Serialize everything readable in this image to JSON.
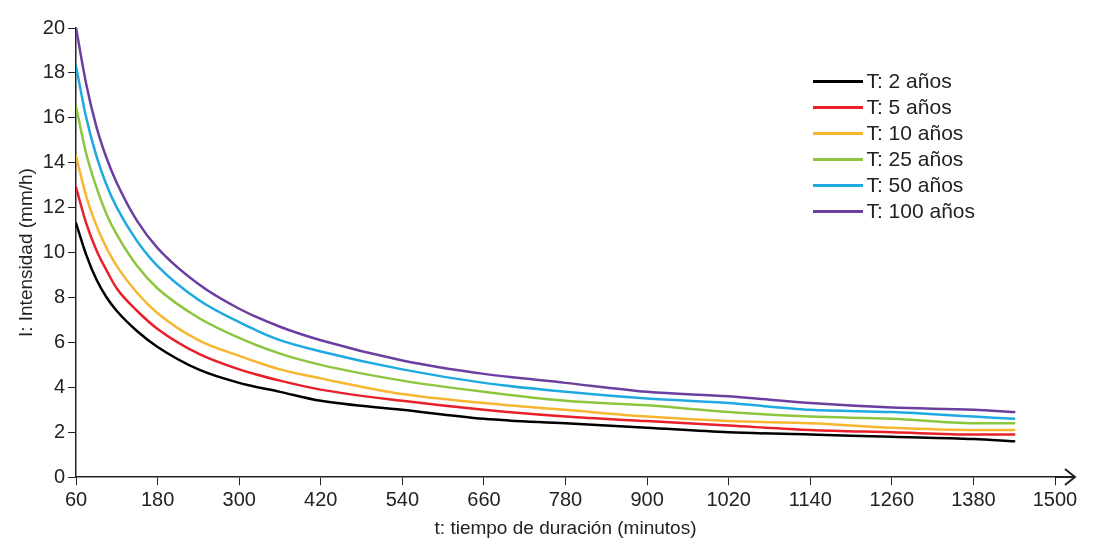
{
  "chart_data": {
    "type": "line",
    "xlabel": "t: tiempo de duración (minutos)",
    "ylabel": "I: Intensidad (mm/h)",
    "x": [
      60,
      75,
      90,
      105,
      120,
      150,
      180,
      240,
      300,
      360,
      420,
      540,
      660,
      780,
      900,
      1020,
      1140,
      1260,
      1380,
      1440
    ],
    "series": [
      {
        "name": "T: 2 años",
        "color": "#000000",
        "values": [
          11.3,
          9.9,
          8.8,
          8.0,
          7.4,
          6.5,
          5.8,
          4.8,
          4.2,
          3.8,
          3.4,
          3.0,
          2.6,
          2.4,
          2.2,
          2.0,
          1.9,
          1.8,
          1.7,
          1.6
        ]
      },
      {
        "name": "T: 5 años",
        "color": "#e8202a",
        "values": [
          12.9,
          11.3,
          10.1,
          9.2,
          8.4,
          7.4,
          6.6,
          5.5,
          4.8,
          4.3,
          3.9,
          3.4,
          3.0,
          2.7,
          2.5,
          2.3,
          2.1,
          2.0,
          1.9,
          1.9
        ]
      },
      {
        "name": "T: 10 años",
        "color": "#f7b62f",
        "values": [
          14.3,
          12.5,
          11.2,
          10.2,
          9.4,
          8.2,
          7.3,
          6.1,
          5.4,
          4.8,
          4.4,
          3.7,
          3.3,
          3.0,
          2.7,
          2.5,
          2.4,
          2.2,
          2.1,
          2.1
        ]
      },
      {
        "name": "T: 25 años",
        "color": "#8cc63f",
        "values": [
          16.5,
          14.4,
          12.9,
          11.7,
          10.8,
          9.4,
          8.4,
          7.1,
          6.2,
          5.5,
          5.0,
          4.3,
          3.8,
          3.4,
          3.2,
          2.9,
          2.7,
          2.6,
          2.4,
          2.4
        ]
      },
      {
        "name": "T: 50 años",
        "color": "#1fa9e1",
        "values": [
          18.3,
          16.0,
          14.3,
          13.0,
          12.0,
          10.5,
          9.4,
          7.9,
          6.9,
          6.1,
          5.6,
          4.8,
          4.2,
          3.8,
          3.5,
          3.3,
          3.0,
          2.9,
          2.7,
          2.6
        ]
      },
      {
        "name": "T: 100 años",
        "color": "#6b3fa0",
        "values": [
          20.0,
          17.5,
          15.6,
          14.2,
          13.1,
          11.4,
          10.2,
          8.6,
          7.5,
          6.7,
          6.1,
          5.2,
          4.6,
          4.2,
          3.8,
          3.6,
          3.3,
          3.1,
          3.0,
          2.9
        ]
      }
    ],
    "xlim": [
      60,
      1500
    ],
    "xticks": [
      60,
      180,
      300,
      420,
      540,
      660,
      780,
      900,
      1020,
      1140,
      1260,
      1380,
      1500
    ],
    "ylim": [
      0,
      20
    ],
    "yticks": [
      0,
      2,
      4,
      6,
      8,
      10,
      12,
      14,
      16,
      18,
      20
    ],
    "grid": false,
    "legend": "top right",
    "marker": "none",
    "line_style": "solid"
  }
}
